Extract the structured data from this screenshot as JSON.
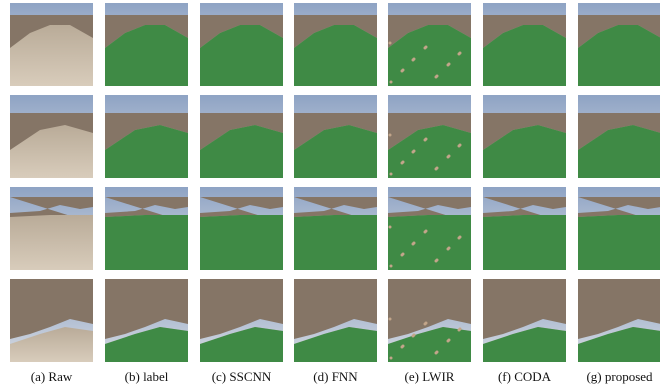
{
  "captions": [
    "(a) Raw",
    "(b) label",
    "(c) SSCNN",
    "(d) FNN",
    "(e) LWIR",
    "(f) CODA",
    "(g) proposed"
  ]
}
